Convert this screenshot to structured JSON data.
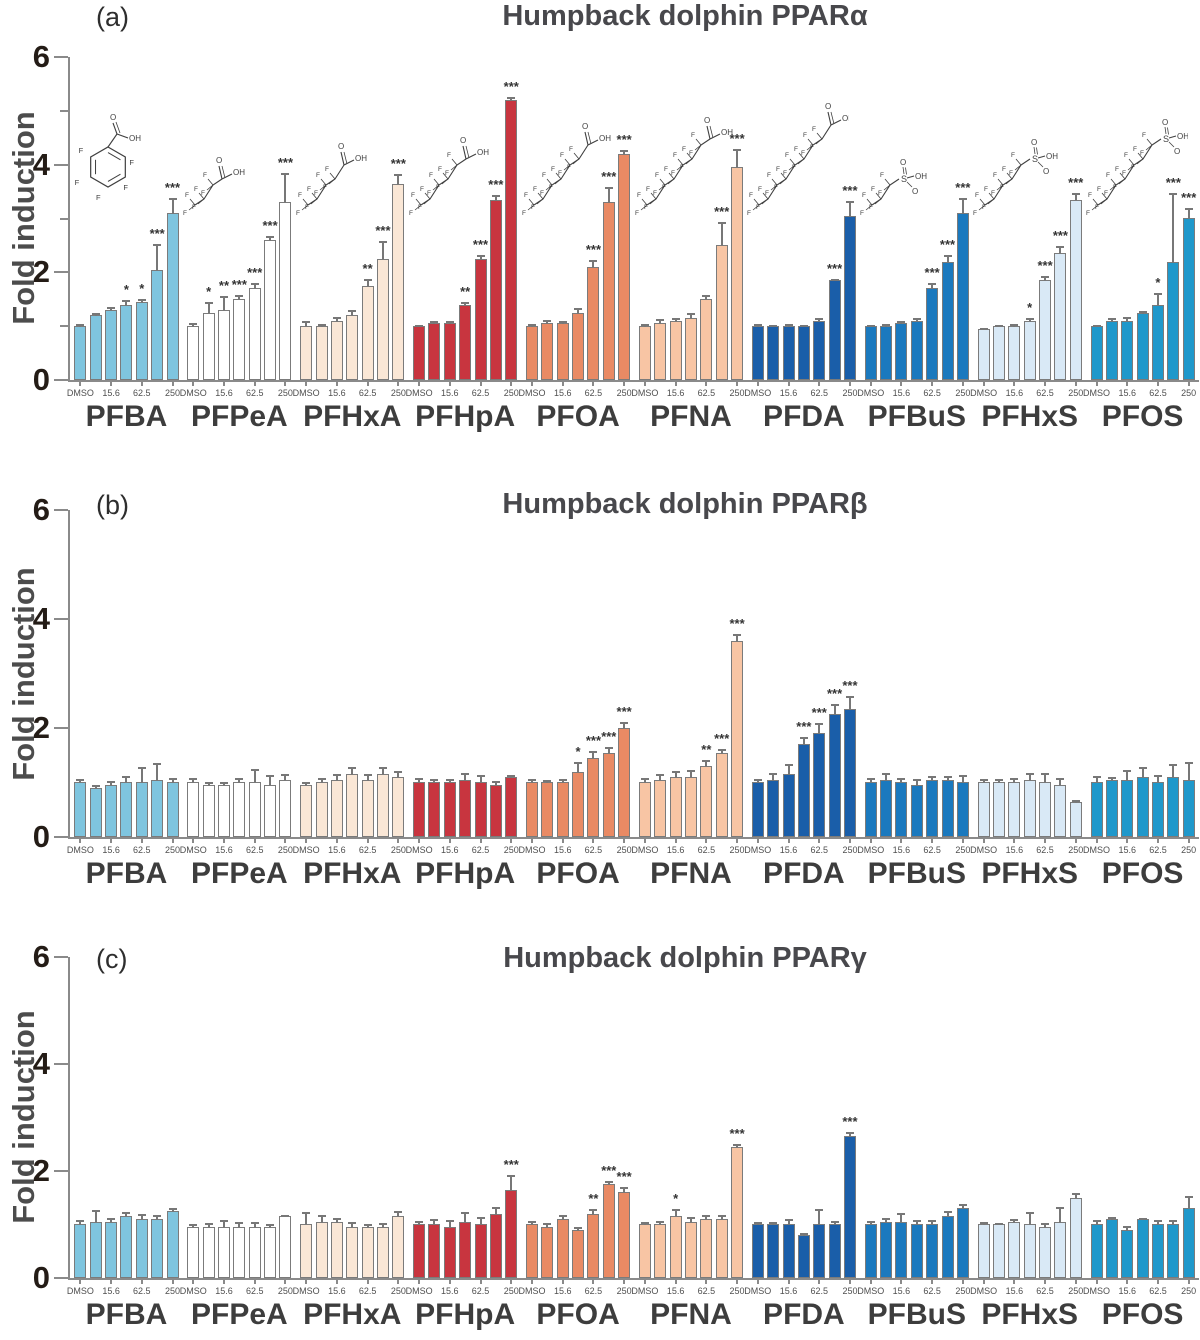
{
  "figure": {
    "colors": {
      "background": "#ffffff",
      "axis": "#8a8a8a",
      "bar_outline": "#7b7b7b",
      "error_bar": "#777777",
      "tick_number_text": "#241c16",
      "title_text": "#48484c",
      "group_label_text": "#3d3d3d",
      "x_tick_text": "#4f4f4f"
    },
    "x_label_slots": [
      0,
      2,
      4,
      6
    ]
  },
  "chart_data": [
    {
      "type": "bar",
      "panel_label": "(a)",
      "title": "Humpback dolphin PPARα",
      "ylabel": "Fold induction",
      "ylim": [
        0,
        6
      ],
      "yticks": [
        0,
        2,
        4,
        6
      ],
      "minor_yticks": [
        1,
        3,
        5
      ],
      "categories": [
        "DMSO",
        "",
        "15.6",
        "",
        "62.5",
        "",
        "250"
      ],
      "x_tick_labels": [
        "DMSO",
        "15.6",
        "62.5",
        "250"
      ],
      "grid": false,
      "groups": [
        {
          "name": "PFBA",
          "color": "#7FC5DF",
          "structure": {
            "kind": "ring",
            "carbons": 6,
            "head": "COOH"
          },
          "values": [
            1.0,
            1.2,
            1.3,
            1.4,
            1.45,
            2.05,
            3.1
          ],
          "errors": [
            0.05,
            0.05,
            0.08,
            0.12,
            0.07,
            0.5,
            0.3
          ],
          "sig": [
            "",
            "",
            "",
            "*",
            "*",
            "***",
            "***"
          ]
        },
        {
          "name": "PFPeA",
          "color": "#FFFFFF",
          "structure": {
            "kind": "chain",
            "carbons": 4,
            "head": "COOH"
          },
          "values": [
            1.0,
            1.25,
            1.3,
            1.5,
            1.7,
            2.6,
            3.3
          ],
          "errors": [
            0.08,
            0.22,
            0.28,
            0.1,
            0.12,
            0.1,
            0.55
          ],
          "sig": [
            "",
            "*",
            "**",
            "***",
            "***",
            "***",
            "***"
          ]
        },
        {
          "name": "PFHxA",
          "color": "#FAE7D6",
          "structure": {
            "kind": "chain",
            "carbons": 5,
            "head": "COOH"
          },
          "values": [
            1.0,
            1.0,
            1.1,
            1.2,
            1.75,
            2.25,
            3.65
          ],
          "errors": [
            0.12,
            0.06,
            0.1,
            0.12,
            0.15,
            0.35,
            0.2
          ],
          "sig": [
            "",
            "",
            "",
            "",
            "**",
            "***",
            "***"
          ]
        },
        {
          "name": "PFHpA",
          "color": "#C8353F",
          "structure": {
            "kind": "chain",
            "carbons": 6,
            "head": "COOH"
          },
          "values": [
            1.0,
            1.05,
            1.05,
            1.4,
            2.25,
            3.35,
            5.2
          ],
          "errors": [
            0.04,
            0.06,
            0.05,
            0.08,
            0.1,
            0.12,
            0.07
          ],
          "sig": [
            "",
            "",
            "",
            "**",
            "***",
            "***",
            "***"
          ]
        },
        {
          "name": "PFOA",
          "color": "#E98A64",
          "structure": {
            "kind": "chain",
            "carbons": 7,
            "head": "COOH"
          },
          "values": [
            1.0,
            1.05,
            1.05,
            1.25,
            2.1,
            3.3,
            4.2
          ],
          "errors": [
            0.05,
            0.08,
            0.05,
            0.12,
            0.15,
            0.3,
            0.1
          ],
          "sig": [
            "",
            "",
            "",
            "",
            "***",
            "***",
            "***"
          ]
        },
        {
          "name": "PFNA",
          "color": "#F8C5A4",
          "structure": {
            "kind": "chain",
            "carbons": 8,
            "head": "COOH"
          },
          "values": [
            1.0,
            1.05,
            1.1,
            1.15,
            1.5,
            2.5,
            3.95
          ],
          "errors": [
            0.06,
            0.1,
            0.08,
            0.12,
            0.1,
            0.45,
            0.35
          ],
          "sig": [
            "",
            "",
            "",
            "",
            "",
            "***",
            "***"
          ]
        },
        {
          "name": "PFDA",
          "color": "#1A5EA9",
          "structure": {
            "kind": "chain",
            "carbons": 9,
            "head": "COOH"
          },
          "values": [
            1.0,
            1.0,
            1.0,
            1.0,
            1.1,
            1.85,
            3.05
          ],
          "errors": [
            0.05,
            0.04,
            0.05,
            0.04,
            0.08,
            0.04,
            0.3
          ],
          "sig": [
            "",
            "",
            "",
            "",
            "",
            "***",
            "***"
          ]
        },
        {
          "name": "PFBuS",
          "color": "#1B79BE",
          "structure": {
            "kind": "chain",
            "carbons": 4,
            "head": "SO3H"
          },
          "values": [
            1.0,
            1.0,
            1.05,
            1.1,
            1.7,
            2.2,
            3.1
          ],
          "errors": [
            0.04,
            0.05,
            0.05,
            0.07,
            0.12,
            0.15,
            0.3
          ],
          "sig": [
            "",
            "",
            "",
            "",
            "***",
            "***",
            "***"
          ]
        },
        {
          "name": "PFHxS",
          "color": "#D9E9F6",
          "structure": {
            "kind": "chain",
            "carbons": 6,
            "head": "SO3H"
          },
          "values": [
            0.95,
            1.0,
            1.0,
            1.1,
            1.85,
            2.35,
            3.35
          ],
          "errors": [
            0.04,
            0.04,
            0.05,
            0.08,
            0.1,
            0.15,
            0.15
          ],
          "sig": [
            "",
            "",
            "",
            "*",
            "***",
            "***",
            "***"
          ]
        },
        {
          "name": "PFOS",
          "color": "#1F98CB",
          "structure": {
            "kind": "chain",
            "carbons": 8,
            "head": "SO3H"
          },
          "values": [
            1.0,
            1.1,
            1.1,
            1.25,
            1.4,
            2.2,
            3.0
          ],
          "errors": [
            0.04,
            0.08,
            0.1,
            0.05,
            0.25,
            1.3,
            0.2
          ],
          "sig": [
            "",
            "",
            "",
            "",
            "*",
            "***",
            "***"
          ]
        }
      ]
    },
    {
      "type": "bar",
      "panel_label": "(b)",
      "title": "Humpback dolphin PPARβ",
      "ylabel": "Fold induction",
      "ylim": [
        0,
        6
      ],
      "yticks": [
        0,
        2,
        4,
        6
      ],
      "minor_yticks": [],
      "categories": [
        "DMSO",
        "",
        "15.6",
        "",
        "62.5",
        "",
        "250"
      ],
      "x_tick_labels": [
        "DMSO",
        "15.6",
        "62.5",
        "250"
      ],
      "grid": false,
      "groups": [
        {
          "name": "PFBA",
          "color": "#7FC5DF",
          "values": [
            1.0,
            0.9,
            0.95,
            1.0,
            1.0,
            1.05,
            1.0
          ],
          "errors": [
            0.08,
            0.07,
            0.1,
            0.12,
            0.3,
            0.33,
            0.1
          ],
          "sig": [
            "",
            "",
            "",
            "",
            "",
            "",
            ""
          ]
        },
        {
          "name": "PFPeA",
          "color": "#FFFFFF",
          "values": [
            1.0,
            0.95,
            0.95,
            1.0,
            1.0,
            0.95,
            1.05
          ],
          "errors": [
            0.1,
            0.07,
            0.08,
            0.09,
            0.25,
            0.2,
            0.12
          ],
          "sig": [
            "",
            "",
            "",
            "",
            "",
            "",
            ""
          ]
        },
        {
          "name": "PFHxA",
          "color": "#FAE7D6",
          "values": [
            0.95,
            1.0,
            1.05,
            1.15,
            1.05,
            1.15,
            1.1
          ],
          "errors": [
            0.08,
            0.1,
            0.12,
            0.15,
            0.12,
            0.15,
            0.12
          ],
          "sig": [
            "",
            "",
            "",
            "",
            "",
            "",
            ""
          ]
        },
        {
          "name": "PFHpA",
          "color": "#C8353F",
          "values": [
            1.0,
            1.0,
            1.0,
            1.05,
            1.0,
            0.95,
            1.1
          ],
          "errors": [
            0.1,
            0.08,
            0.08,
            0.15,
            0.15,
            0.1,
            0.05
          ],
          "sig": [
            "",
            "",
            "",
            "",
            "",
            "",
            ""
          ]
        },
        {
          "name": "PFOA",
          "color": "#E98A64",
          "values": [
            1.0,
            1.0,
            1.0,
            1.2,
            1.45,
            1.55,
            2.0
          ],
          "errors": [
            0.08,
            0.06,
            0.08,
            0.2,
            0.15,
            0.12,
            0.12
          ],
          "sig": [
            "",
            "",
            "",
            "*",
            "***",
            "***",
            "***"
          ]
        },
        {
          "name": "PFNA",
          "color": "#F8C5A4",
          "values": [
            1.0,
            1.05,
            1.1,
            1.1,
            1.3,
            1.55,
            3.6
          ],
          "errors": [
            0.1,
            0.12,
            0.12,
            0.15,
            0.12,
            0.1,
            0.15
          ],
          "sig": [
            "",
            "",
            "",
            "",
            "**",
            "***",
            "***"
          ]
        },
        {
          "name": "PFDA",
          "color": "#1A5EA9",
          "values": [
            1.0,
            1.05,
            1.15,
            1.7,
            1.9,
            2.25,
            2.35
          ],
          "errors": [
            0.08,
            0.15,
            0.2,
            0.15,
            0.2,
            0.2,
            0.25
          ],
          "sig": [
            "",
            "",
            "",
            "***",
            "***",
            "***",
            "***"
          ]
        },
        {
          "name": "PFBuS",
          "color": "#1B79BE",
          "values": [
            1.0,
            1.05,
            1.0,
            0.95,
            1.05,
            1.05,
            1.0
          ],
          "errors": [
            0.1,
            0.15,
            0.1,
            0.12,
            0.1,
            0.1,
            0.15
          ],
          "sig": [
            "",
            "",
            "",
            "",
            "",
            "",
            ""
          ]
        },
        {
          "name": "PFHxS",
          "color": "#D9E9F6",
          "values": [
            1.0,
            1.0,
            1.0,
            1.05,
            1.0,
            0.95,
            0.65
          ],
          "errors": [
            0.08,
            0.08,
            0.1,
            0.15,
            0.18,
            0.15,
            0.05
          ],
          "sig": [
            "",
            "",
            "",
            "",
            "",
            "",
            ""
          ]
        },
        {
          "name": "PFOS",
          "color": "#1F98CB",
          "values": [
            1.0,
            1.05,
            1.05,
            1.1,
            1.0,
            1.1,
            1.05
          ],
          "errors": [
            0.12,
            0.08,
            0.2,
            0.2,
            0.15,
            0.25,
            0.35
          ],
          "sig": [
            "",
            "",
            "",
            "",
            "",
            "",
            ""
          ]
        }
      ]
    },
    {
      "type": "bar",
      "panel_label": "(c)",
      "title": "Humpback dolphin PPARγ",
      "ylabel": "Fold induction",
      "ylim": [
        0,
        6
      ],
      "yticks": [
        0,
        2,
        4,
        6
      ],
      "minor_yticks": [],
      "categories": [
        "DMSO",
        "",
        "15.6",
        "",
        "62.5",
        "",
        "250"
      ],
      "x_tick_labels": [
        "DMSO",
        "15.6",
        "62.5",
        "250"
      ],
      "grid": false,
      "groups": [
        {
          "name": "PFBA",
          "color": "#7FC5DF",
          "values": [
            1.0,
            1.05,
            1.05,
            1.15,
            1.1,
            1.1,
            1.25
          ],
          "errors": [
            0.1,
            0.25,
            0.1,
            0.1,
            0.12,
            0.1,
            0.08
          ],
          "sig": [
            "",
            "",
            "",
            "",
            "",
            "",
            ""
          ]
        },
        {
          "name": "PFPeA",
          "color": "#FFFFFF",
          "values": [
            0.95,
            0.95,
            0.95,
            0.95,
            0.95,
            0.95,
            1.15
          ],
          "errors": [
            0.08,
            0.1,
            0.15,
            0.12,
            0.12,
            0.08,
            0.02
          ],
          "sig": [
            "",
            "",
            "",
            "",
            "",
            "",
            ""
          ]
        },
        {
          "name": "PFHxA",
          "color": "#FAE7D6",
          "values": [
            1.0,
            1.05,
            1.05,
            0.95,
            0.95,
            0.95,
            1.15
          ],
          "errors": [
            0.25,
            0.15,
            0.1,
            0.12,
            0.08,
            0.1,
            0.12
          ],
          "sig": [
            "",
            "",
            "",
            "",
            "",
            "",
            ""
          ]
        },
        {
          "name": "PFHpA",
          "color": "#C8353F",
          "values": [
            1.0,
            1.0,
            0.95,
            1.05,
            1.0,
            1.2,
            1.65
          ],
          "errors": [
            0.08,
            0.12,
            0.15,
            0.2,
            0.15,
            0.15,
            0.3
          ],
          "sig": [
            "",
            "",
            "",
            "",
            "",
            "",
            "***"
          ]
        },
        {
          "name": "PFOA",
          "color": "#E98A64",
          "values": [
            1.0,
            0.95,
            1.1,
            0.9,
            1.2,
            1.75,
            1.6
          ],
          "errors": [
            0.08,
            0.1,
            0.1,
            0.08,
            0.12,
            0.08,
            0.12
          ],
          "sig": [
            "",
            "",
            "",
            "",
            "**",
            "***",
            "***"
          ]
        },
        {
          "name": "PFNA",
          "color": "#F8C5A4",
          "values": [
            1.0,
            1.0,
            1.15,
            1.05,
            1.1,
            1.1,
            2.45
          ],
          "errors": [
            0.06,
            0.08,
            0.15,
            0.12,
            0.1,
            0.1,
            0.08
          ],
          "sig": [
            "",
            "",
            "*",
            "",
            "",
            "",
            "***"
          ]
        },
        {
          "name": "PFDA",
          "color": "#1A5EA9",
          "values": [
            1.0,
            1.0,
            1.0,
            0.8,
            1.0,
            1.0,
            2.65
          ],
          "errors": [
            0.06,
            0.05,
            0.12,
            0.05,
            0.3,
            0.08,
            0.1
          ],
          "sig": [
            "",
            "",
            "",
            "",
            "",
            "",
            "***"
          ]
        },
        {
          "name": "PFBuS",
          "color": "#1B79BE",
          "values": [
            1.0,
            1.05,
            1.05,
            1.0,
            1.0,
            1.15,
            1.3
          ],
          "errors": [
            0.08,
            0.1,
            0.18,
            0.1,
            0.1,
            0.12,
            0.1
          ],
          "sig": [
            "",
            "",
            "",
            "",
            "",
            "",
            ""
          ]
        },
        {
          "name": "PFHxS",
          "color": "#D9E9F6",
          "values": [
            1.0,
            1.0,
            1.05,
            1.0,
            0.95,
            1.05,
            1.5
          ],
          "errors": [
            0.05,
            0.03,
            0.08,
            0.25,
            0.1,
            0.3,
            0.12
          ],
          "sig": [
            "",
            "",
            "",
            "",
            "",
            "",
            ""
          ]
        },
        {
          "name": "PFOS",
          "color": "#1F98CB",
          "values": [
            1.0,
            1.1,
            0.9,
            1.1,
            1.0,
            1.0,
            1.3
          ],
          "errors": [
            0.1,
            0.06,
            0.1,
            0.03,
            0.1,
            0.1,
            0.25
          ],
          "sig": [
            "",
            "",
            "",
            "",
            "",
            "",
            ""
          ]
        }
      ]
    }
  ]
}
